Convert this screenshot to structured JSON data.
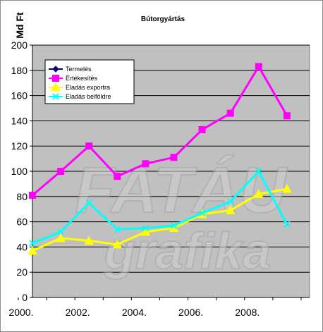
{
  "chart_data": {
    "type": "line",
    "title": "Bútorgyártás",
    "ylabel": "Md Ft",
    "xlabel": "",
    "x": [
      2000,
      2001,
      2002,
      2003,
      2004,
      2005,
      2006,
      2007,
      2008,
      2009
    ],
    "x_tick_labels": [
      "2000.",
      "2002.",
      "2004.",
      "2006.",
      "2008."
    ],
    "ylim": [
      0,
      200
    ],
    "y_ticks": [
      0,
      20,
      40,
      60,
      80,
      100,
      120,
      140,
      160,
      180,
      200
    ],
    "grid": true,
    "legend_placement": "top-left",
    "background_color": "#c0c0c0",
    "series": [
      {
        "name": "Termelés",
        "color": "#000080",
        "marker": "diamond",
        "values": [
          null,
          null,
          null,
          null,
          null,
          null,
          null,
          null,
          null,
          null
        ]
      },
      {
        "name": "Értékesítés",
        "color": "#ff00ff",
        "marker": "square",
        "values": [
          81,
          100,
          120,
          96,
          106,
          111,
          133,
          146,
          183,
          144
        ]
      },
      {
        "name": "Eladás exportra",
        "color": "#ffff00",
        "marker": "triangle",
        "values": [
          37,
          47,
          45,
          42,
          52,
          55,
          66,
          69,
          82,
          86
        ]
      },
      {
        "name": "Eladás belföldre",
        "color": "#00ffff",
        "marker": "x",
        "values": [
          43,
          52,
          75,
          54,
          55,
          57,
          67,
          76,
          100,
          58
        ]
      }
    ]
  },
  "watermark": {
    "line1": "FATÁU",
    "line2": "grafika"
  }
}
